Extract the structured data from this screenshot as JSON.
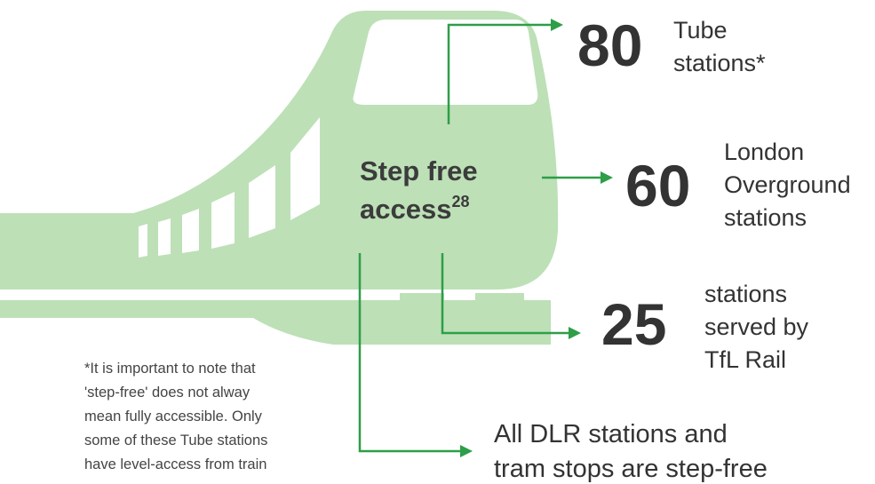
{
  "step_free": {
    "title_lines": [
      "Step free",
      "access"
    ],
    "note": "28"
  },
  "stats": [
    {
      "number": 80,
      "label_lines": [
        "Tube",
        "stations*"
      ]
    },
    {
      "number": 60,
      "label_lines": [
        "London",
        "Overground",
        "stations"
      ]
    },
    {
      "number": 25,
      "label_lines": [
        "stations",
        "served by",
        "TfL Rail"
      ]
    }
  ],
  "dlr": {
    "lines": [
      "All DLR stations and",
      "tram stops are step-free"
    ]
  },
  "footnote": {
    "lines": [
      "*It is important to note that",
      "'step-free' does not alway",
      "mean fully accessible. Only",
      "some of these Tube stations",
      "have level-access from train"
    ]
  }
}
